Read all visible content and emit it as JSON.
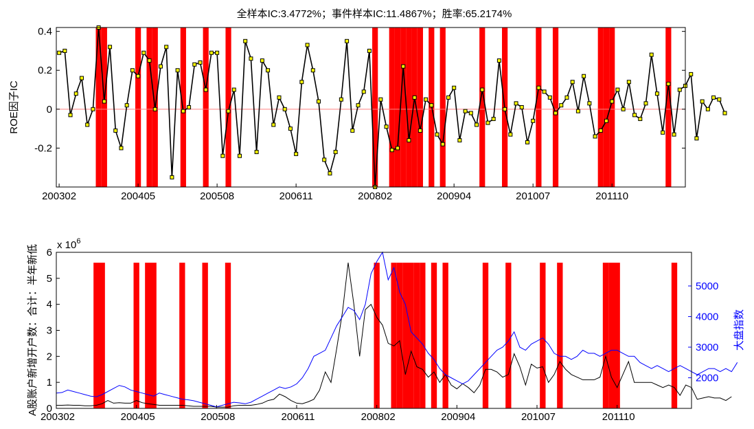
{
  "colors": {
    "event_bar": "#ff0000",
    "ic_line": "#000000",
    "ic_marker": "#ffff00",
    "zero_line": "#ff8080",
    "accounts_line": "#000000",
    "index_line": "#0000ff",
    "right_axis": "#0000ff"
  },
  "chart_data": [
    {
      "type": "line",
      "title": "全样本IC:3.4772%；事件样本IC:11.4867%；胜率:65.2174%",
      "xlabel": "",
      "ylabel": "ROE因子IC",
      "x_tick_labels": [
        "200302",
        "200405",
        "200508",
        "200611",
        "200802",
        "200904",
        "201007",
        "201110"
      ],
      "x_tick_months": [
        0,
        14,
        28,
        42,
        56,
        70,
        84,
        98
      ],
      "y_ticks": [
        -0.2,
        0,
        0.2,
        0.4
      ],
      "y_tick_labels": [
        "-0.2",
        "0",
        "0.2",
        "0.4"
      ],
      "ylim": [
        -0.4,
        0.42
      ],
      "xlim": [
        -0.5,
        111
      ],
      "x_start": "2003-02",
      "x_step": "1 month",
      "series": [
        {
          "values": [
            0.29,
            0.3,
            -0.03,
            0.08,
            0.16,
            -0.08,
            0.0,
            0.42,
            0.04,
            0.32,
            -0.11,
            -0.2,
            0.02,
            0.2,
            0.17,
            0.29,
            0.25,
            0.0,
            0.22,
            0.32,
            -0.35,
            0.2,
            -0.01,
            0.01,
            0.23,
            0.24,
            0.1,
            0.29,
            0.29,
            -0.24,
            -0.01,
            0.1,
            -0.24,
            0.35,
            0.26,
            -0.22,
            0.25,
            0.2,
            -0.08,
            0.06,
            0.0,
            -0.1,
            -0.23,
            0.14,
            0.33,
            0.2,
            0.04,
            -0.26,
            -0.33,
            -0.22,
            0.05,
            0.35,
            -0.11,
            0.02,
            0.09,
            0.3,
            -0.4,
            0.05,
            -0.09,
            -0.21,
            -0.2,
            0.22,
            -0.16,
            0.06,
            -0.11,
            0.05,
            0.02,
            -0.13,
            -0.18,
            0.06,
            0.11,
            -0.16,
            -0.01,
            -0.02,
            -0.08,
            0.1,
            -0.07,
            -0.05,
            0.25,
            0.0,
            -0.13,
            0.03,
            0.01,
            -0.17,
            -0.06,
            0.11,
            0.09,
            0.06,
            -0.02,
            0.02,
            0.06,
            0.14,
            -0.01,
            0.17,
            0.03,
            -0.14,
            -0.11,
            -0.06,
            0.04,
            0.1,
            0.0,
            0.14,
            -0.03,
            -0.05,
            0.03,
            0.28,
            0.08,
            -0.12,
            0.13,
            -0.13,
            0.1,
            0.12,
            0.18,
            -0.15,
            0.04,
            0.0,
            0.06,
            0.05,
            -0.02
          ]
        }
      ],
      "event_months": [
        7,
        8,
        14,
        16,
        17,
        22,
        26,
        30,
        56,
        59,
        60,
        61,
        62,
        63,
        64,
        66,
        68,
        75,
        79,
        85,
        88,
        96,
        97,
        98,
        108
      ]
    },
    {
      "type": "line",
      "title": "",
      "xlabel": "",
      "ylabel": "A股账户新增开户数：合计：半年新低",
      "y2label": "大盘指数",
      "exponent_label": "x 10",
      "exponent_power": "6",
      "x_tick_labels": [
        "200302",
        "200405",
        "200508",
        "200611",
        "200802",
        "200904",
        "201007",
        "201110"
      ],
      "x_tick_months": [
        0,
        14,
        28,
        42,
        56,
        70,
        84,
        98
      ],
      "y_ticks": [
        0,
        1,
        2,
        3,
        4,
        5,
        6
      ],
      "y_tick_labels": [
        "0",
        "1",
        "2",
        "3",
        "4",
        "5",
        "6"
      ],
      "ylim": [
        0,
        6
      ],
      "y2_ticks": [
        2000,
        3000,
        4000,
        5000
      ],
      "y2_tick_labels": [
        "2000",
        "3000",
        "4000",
        "5000"
      ],
      "y2lim": [
        1000,
        6100
      ],
      "xlim": [
        0,
        111
      ],
      "series": [
        {
          "name": "A股账户新增开户数",
          "axis": "left",
          "values": [
            0.12,
            0.12,
            0.13,
            0.12,
            0.12,
            0.1,
            0.1,
            0.12,
            0.18,
            0.3,
            0.2,
            0.22,
            0.2,
            0.2,
            0.3,
            0.22,
            0.18,
            0.15,
            0.12,
            0.12,
            0.12,
            0.12,
            0.12,
            0.1,
            0.08,
            0.08,
            0.08,
            0.08,
            0.05,
            0.05,
            0.05,
            0.1,
            0.12,
            0.12,
            0.12,
            0.15,
            0.2,
            0.3,
            0.35,
            0.55,
            0.45,
            0.3,
            0.2,
            0.18,
            0.25,
            0.35,
            0.7,
            1.4,
            1.0,
            2.3,
            3.7,
            5.6,
            4.0,
            2.0,
            3.8,
            4.0,
            3.5,
            3.2,
            2.5,
            2.4,
            2.6,
            1.3,
            2.2,
            1.6,
            1.5,
            1.2,
            1.4,
            1.0,
            1.3,
            0.9,
            0.75,
            0.95,
            0.8,
            0.6,
            0.9,
            1.5,
            1.5,
            1.4,
            1.2,
            1.3,
            2.1,
            1.6,
            0.9,
            1.7,
            1.55,
            1.6,
            1.0,
            1.3,
            1.8,
            1.5,
            1.3,
            1.2,
            1.1,
            1.1,
            1.1,
            1.2,
            2.0,
            1.2,
            0.8,
            1.3,
            1.8,
            1.0,
            1.0,
            1.0,
            1.0,
            0.9,
            0.8,
            0.9,
            0.8,
            0.5,
            0.9,
            0.8,
            0.35,
            0.4,
            0.45,
            0.4,
            0.4,
            0.3,
            0.45
          ]
        },
        {
          "name": "大盘指数",
          "axis": "right",
          "values": [
            1500,
            1520,
            1600,
            1550,
            1500,
            1450,
            1400,
            1380,
            1450,
            1550,
            1650,
            1750,
            1700,
            1600,
            1550,
            1500,
            1450,
            1400,
            1500,
            1450,
            1400,
            1350,
            1300,
            1280,
            1250,
            1200,
            1150,
            1100,
            1050,
            1100,
            1150,
            1200,
            1180,
            1150,
            1200,
            1300,
            1400,
            1500,
            1600,
            1700,
            1650,
            1700,
            1800,
            2000,
            2300,
            2700,
            2800,
            2900,
            3300,
            3700,
            4000,
            4300,
            4200,
            3900,
            4400,
            5400,
            5800,
            6100,
            5200,
            5600,
            4800,
            4400,
            3500,
            3300,
            3100,
            2800,
            2600,
            2300,
            2100,
            2000,
            1900,
            1800,
            1900,
            2100,
            2300,
            2500,
            2700,
            2900,
            3000,
            3200,
            3500,
            3000,
            2900,
            3100,
            3200,
            3300,
            3100,
            2800,
            2700,
            2700,
            2600,
            2700,
            2900,
            2800,
            2800,
            2700,
            2800,
            2900,
            2900,
            2800,
            2700,
            2700,
            2500,
            2400,
            2300,
            2400,
            2300,
            2200,
            2300,
            2400,
            2300,
            2200,
            2100,
            2200,
            2300,
            2300,
            2200,
            2300,
            2200,
            2500
          ]
        }
      ],
      "event_months": [
        7,
        8,
        14,
        16,
        17,
        22,
        26,
        30,
        56,
        59,
        60,
        61,
        62,
        63,
        64,
        66,
        68,
        75,
        79,
        85,
        88,
        96,
        97,
        98,
        108
      ]
    }
  ]
}
